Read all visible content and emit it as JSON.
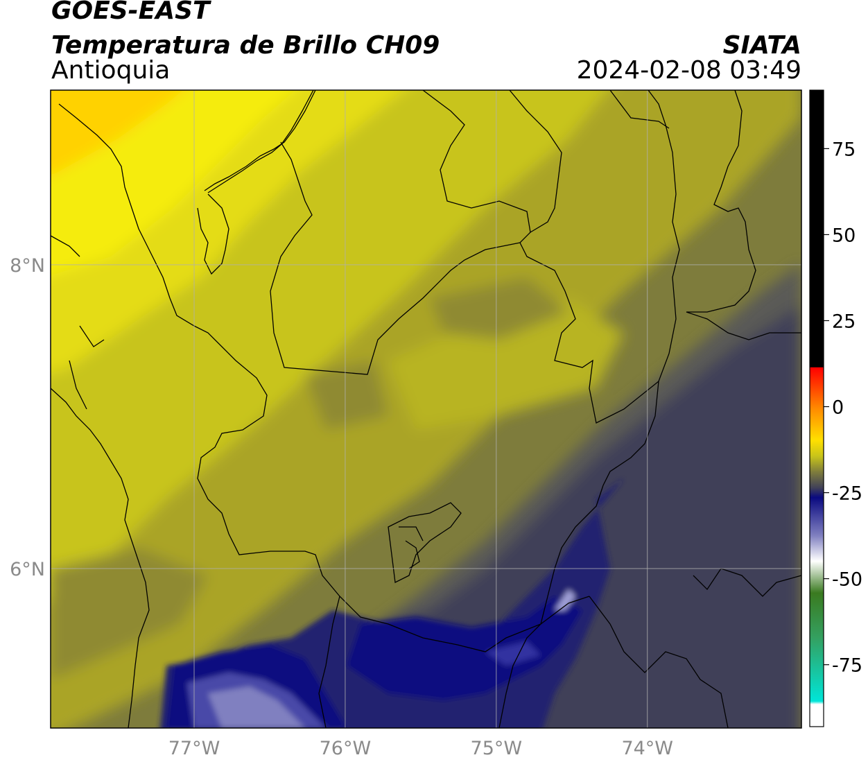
{
  "header": {
    "satellite": "GOES-EAST",
    "product": "Temperatura de Brillo CH09",
    "region": "Antioquia",
    "organization": "SIATA",
    "datetime": "2024-02-08 03:49"
  },
  "map": {
    "lon_range": [
      -77.95,
      -72.98
    ],
    "lat_range": [
      4.95,
      9.15
    ],
    "lon_ticks": [
      {
        "value": -77,
        "label": "77°W"
      },
      {
        "value": -76,
        "label": "76°W"
      },
      {
        "value": -75,
        "label": "75°W"
      },
      {
        "value": -74,
        "label": "74°W"
      }
    ],
    "lat_ticks": [
      {
        "value": 8,
        "label": "8°N"
      },
      {
        "value": 6,
        "label": "6°N"
      }
    ],
    "grid": true,
    "coastline_color": "#000000",
    "field_colors": {
      "warm_core": "#ffd200",
      "yellow": "#f2ea10",
      "olive_light": "#c8c41a",
      "olive": "#aaa428",
      "olive_dark": "#7e7c3c",
      "gray_slate": "#5a5a56",
      "slate_blue": "#404058",
      "navy": "#202070",
      "deep_blue": "#0a0a80",
      "lavender": "#8080c0"
    }
  },
  "colorbar": {
    "range": [
      -93,
      92
    ],
    "ticks": [
      {
        "value": 75,
        "label": "75"
      },
      {
        "value": 50,
        "label": "50"
      },
      {
        "value": 25,
        "label": "25"
      },
      {
        "value": 0,
        "label": "0"
      },
      {
        "value": -25,
        "label": "-25"
      },
      {
        "value": -50,
        "label": "-50"
      },
      {
        "value": -75,
        "label": "-75"
      }
    ]
  }
}
